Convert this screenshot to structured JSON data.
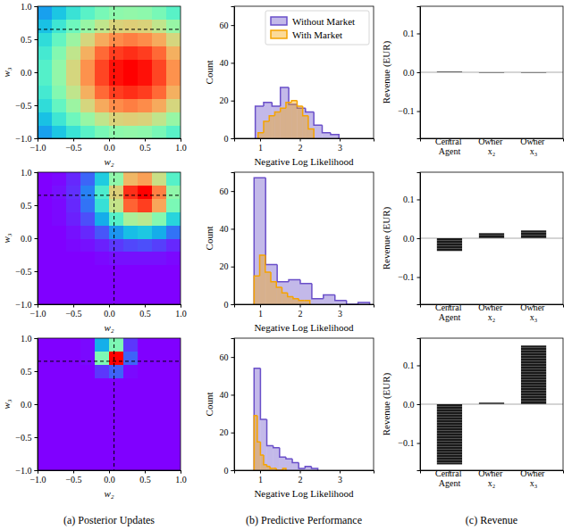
{
  "captions": [
    "(a) Posterior Updates",
    "(b) Predictive Performance",
    "(c) Revenue"
  ],
  "chart_data": [
    {
      "type": "heatmap",
      "x": [
        -0.9,
        -0.7,
        -0.5,
        -0.3,
        -0.1,
        0.1,
        0.3,
        0.5,
        0.7,
        0.9
      ],
      "y": [
        -0.9,
        -0.7,
        -0.5,
        -0.3,
        -0.1,
        0.1,
        0.3,
        0.5,
        0.7,
        0.9
      ],
      "z": [
        [
          0.22,
          0.29,
          0.36,
          0.42,
          0.48,
          0.52,
          0.53,
          0.52,
          0.48,
          0.42
        ],
        [
          0.28,
          0.37,
          0.46,
          0.54,
          0.62,
          0.67,
          0.68,
          0.67,
          0.62,
          0.54
        ],
        [
          0.34,
          0.44,
          0.55,
          0.66,
          0.75,
          0.8,
          0.82,
          0.8,
          0.75,
          0.66
        ],
        [
          0.38,
          0.5,
          0.62,
          0.74,
          0.85,
          0.91,
          0.93,
          0.91,
          0.85,
          0.74
        ],
        [
          0.41,
          0.53,
          0.66,
          0.79,
          0.9,
          0.97,
          0.99,
          0.97,
          0.9,
          0.79
        ],
        [
          0.41,
          0.53,
          0.66,
          0.79,
          0.9,
          0.97,
          0.99,
          0.97,
          0.9,
          0.79
        ],
        [
          0.38,
          0.5,
          0.62,
          0.74,
          0.85,
          0.91,
          0.93,
          0.91,
          0.85,
          0.74
        ],
        [
          0.34,
          0.44,
          0.55,
          0.66,
          0.75,
          0.8,
          0.82,
          0.8,
          0.75,
          0.66
        ],
        [
          0.28,
          0.37,
          0.46,
          0.54,
          0.62,
          0.67,
          0.68,
          0.67,
          0.62,
          0.54
        ],
        [
          0.22,
          0.29,
          0.36,
          0.42,
          0.48,
          0.52,
          0.53,
          0.52,
          0.48,
          0.42
        ]
      ],
      "vline": 0.07,
      "hline": 0.65,
      "xlim": [
        -1,
        1
      ],
      "ylim": [
        -1,
        1
      ],
      "xticks": [
        {
          "value": -1,
          "label": "−1.0"
        },
        {
          "value": -0.5,
          "label": "−0.5"
        },
        {
          "value": 0,
          "label": "0.0"
        },
        {
          "value": 0.5,
          "label": "0.5"
        },
        {
          "value": 1,
          "label": "1.0"
        }
      ],
      "yticks": [
        {
          "value": -1,
          "label": "−1.0"
        },
        {
          "value": -0.5,
          "label": "−0.5"
        },
        {
          "value": 0,
          "label": "0.0"
        },
        {
          "value": 0.5,
          "label": "0.5"
        },
        {
          "value": 1,
          "label": "1.0"
        }
      ],
      "xlabel": "w₂",
      "ylabel": "w₃"
    },
    {
      "type": "histogram",
      "series": [
        {
          "name": "Without Market",
          "color": "#6a4fc9",
          "bins": [
            0.88,
            1.09,
            1.3,
            1.51,
            1.72,
            1.93,
            2.14,
            2.35,
            2.56,
            2.77,
            2.98
          ],
          "counts": [
            17,
            19,
            17,
            27,
            18,
            16,
            14,
            7,
            3,
            2
          ]
        },
        {
          "name": "With Market",
          "color": "#f5a300",
          "bins": [
            0.95,
            1.09,
            1.23,
            1.37,
            1.51,
            1.65,
            1.79,
            1.93,
            2.07,
            2.21,
            2.35
          ],
          "counts": [
            3,
            9,
            12,
            14,
            16,
            19,
            20,
            17,
            12,
            5
          ]
        }
      ],
      "xlim": [
        0.35,
        3.85
      ],
      "ylim": [
        0,
        70
      ],
      "xticks": [
        1,
        2,
        3
      ],
      "yticks": [
        0,
        20,
        40,
        60
      ],
      "xlabel": "Negative Log Likelihood",
      "ylabel": "Count",
      "legend": "upper right"
    },
    {
      "type": "bar",
      "categories": [
        "Central Agent",
        "Owner x₂",
        "Owner x₃"
      ],
      "values": [
        0.002,
        -0.001,
        -0.001
      ],
      "color": "#1a1a1a",
      "ylim": [
        -0.17,
        0.17
      ],
      "yticks": [
        {
          "value": -0.1,
          "label": "−0.1"
        },
        {
          "value": 0,
          "label": "0.0"
        },
        {
          "value": 0.1,
          "label": "0.1"
        }
      ],
      "ylabel": "Revenue (EUR)"
    },
    {
      "type": "heatmap",
      "x": [
        -0.9,
        -0.7,
        -0.5,
        -0.3,
        -0.1,
        0.1,
        0.3,
        0.5,
        0.7,
        0.9
      ],
      "y": [
        -0.9,
        -0.7,
        -0.5,
        -0.3,
        -0.1,
        0.1,
        0.3,
        0.5,
        0.7,
        0.9
      ],
      "z": [
        [
          0,
          0,
          0,
          0,
          0,
          0,
          0,
          0,
          0,
          0
        ],
        [
          0,
          0,
          0,
          0,
          0,
          0,
          0,
          0,
          0,
          0
        ],
        [
          0,
          0,
          0,
          0,
          0,
          0,
          0,
          0,
          0,
          0
        ],
        [
          0,
          0,
          0,
          0,
          0.01,
          0.02,
          0.02,
          0.02,
          0.02,
          0.01
        ],
        [
          0,
          0,
          0.01,
          0.02,
          0.04,
          0.07,
          0.09,
          0.1,
          0.08,
          0.05
        ],
        [
          0,
          0,
          0.02,
          0.05,
          0.11,
          0.2,
          0.27,
          0.29,
          0.24,
          0.15
        ],
        [
          0,
          0.01,
          0.04,
          0.1,
          0.24,
          0.41,
          0.57,
          0.6,
          0.5,
          0.32
        ],
        [
          0,
          0.01,
          0.05,
          0.15,
          0.35,
          0.62,
          0.85,
          0.9,
          0.75,
          0.48
        ],
        [
          0,
          0.02,
          0.06,
          0.17,
          0.39,
          0.67,
          0.92,
          0.98,
          0.81,
          0.52
        ],
        [
          0,
          0.01,
          0.05,
          0.13,
          0.3,
          0.52,
          0.72,
          0.76,
          0.63,
          0.41
        ]
      ],
      "vline": 0.07,
      "hline": 0.65,
      "xlim": [
        -1,
        1
      ],
      "ylim": [
        -1,
        1
      ],
      "xticks": [
        {
          "value": -1,
          "label": "−1.0"
        },
        {
          "value": -0.5,
          "label": "−0.5"
        },
        {
          "value": 0,
          "label": "0.0"
        },
        {
          "value": 0.5,
          "label": "0.5"
        },
        {
          "value": 1,
          "label": "1.0"
        }
      ],
      "yticks": [
        {
          "value": -1,
          "label": "−1.0"
        },
        {
          "value": -0.5,
          "label": "−0.5"
        },
        {
          "value": 0,
          "label": "0.0"
        },
        {
          "value": 0.5,
          "label": "0.5"
        },
        {
          "value": 1,
          "label": "1.0"
        }
      ],
      "xlabel": "w₂",
      "ylabel": "w₃"
    },
    {
      "type": "histogram",
      "series": [
        {
          "color": "#6a4fc9",
          "bins": [
            0.85,
            1.14,
            1.43,
            1.72,
            2.01,
            2.3,
            2.59,
            2.88,
            3.17,
            3.46,
            3.75
          ],
          "counts": [
            67,
            21,
            12,
            13,
            11,
            3,
            5,
            2,
            0,
            1
          ]
        },
        {
          "color": "#f5a300",
          "bins": [
            0.85,
            0.99,
            1.13,
            1.27,
            1.41,
            1.55,
            1.69,
            1.83,
            1.97,
            2.11,
            2.25
          ],
          "counts": [
            15,
            26,
            17,
            12,
            9,
            6,
            4,
            3,
            2,
            2
          ]
        }
      ],
      "xlim": [
        0.35,
        3.85
      ],
      "ylim": [
        0,
        70
      ],
      "xticks": [
        1,
        2,
        3
      ],
      "yticks": [
        0,
        20,
        40,
        60
      ],
      "xlabel": "Negative Log Likelihood",
      "ylabel": "Count"
    },
    {
      "type": "bar",
      "categories": [
        "Central Agent",
        "Owner x₂",
        "Owner x₃"
      ],
      "values": [
        -0.033,
        0.013,
        0.02
      ],
      "color": "#1a1a1a",
      "ylim": [
        -0.17,
        0.17
      ],
      "yticks": [
        {
          "value": -0.1,
          "label": "−0.1"
        },
        {
          "value": 0,
          "label": "0.0"
        },
        {
          "value": 0.1,
          "label": "0.1"
        }
      ],
      "ylabel": "Revenue (EUR)"
    },
    {
      "type": "heatmap",
      "x": [
        -0.9,
        -0.7,
        -0.5,
        -0.3,
        -0.1,
        0.1,
        0.3,
        0.5,
        0.7,
        0.9
      ],
      "y": [
        -0.9,
        -0.7,
        -0.5,
        -0.3,
        -0.1,
        0.1,
        0.3,
        0.5,
        0.7,
        0.9
      ],
      "z": [
        [
          0,
          0,
          0,
          0,
          0,
          0,
          0,
          0,
          0,
          0
        ],
        [
          0,
          0,
          0,
          0,
          0,
          0,
          0,
          0,
          0,
          0
        ],
        [
          0,
          0,
          0,
          0,
          0,
          0,
          0,
          0,
          0,
          0
        ],
        [
          0,
          0,
          0,
          0,
          0,
          0,
          0,
          0,
          0,
          0
        ],
        [
          0,
          0,
          0,
          0,
          0,
          0,
          0,
          0,
          0,
          0
        ],
        [
          0,
          0,
          0,
          0,
          0,
          0,
          0,
          0,
          0,
          0
        ],
        [
          0,
          0,
          0,
          0,
          0,
          0,
          0,
          0,
          0,
          0
        ],
        [
          0,
          0,
          0,
          0,
          0.06,
          0.11,
          0.01,
          0,
          0,
          0
        ],
        [
          0,
          0,
          0,
          0.01,
          0.42,
          0.85,
          0.11,
          0,
          0,
          0
        ],
        [
          0,
          0,
          0,
          0.01,
          0.21,
          0.42,
          0.06,
          0,
          0,
          0
        ]
      ],
      "vline": 0.07,
      "hline": 0.65,
      "xlim": [
        -1,
        1
      ],
      "ylim": [
        -1,
        1
      ],
      "xticks": [
        {
          "value": -1,
          "label": "−1.0"
        },
        {
          "value": -0.5,
          "label": "−0.5"
        },
        {
          "value": 0,
          "label": "0.0"
        },
        {
          "value": 0.5,
          "label": "0.5"
        },
        {
          "value": 1,
          "label": "1.0"
        }
      ],
      "yticks": [
        {
          "value": -1,
          "label": "−1.0"
        },
        {
          "value": -0.5,
          "label": "−0.5"
        },
        {
          "value": 0,
          "label": "0.0"
        },
        {
          "value": 0.5,
          "label": "0.5"
        },
        {
          "value": 1,
          "label": "1.0"
        }
      ],
      "xlabel": "w₂",
      "ylabel": "w₃"
    },
    {
      "type": "histogram",
      "series": [
        {
          "color": "#6a4fc9",
          "bins": [
            0.85,
            1.01,
            1.17,
            1.33,
            1.49,
            1.65,
            1.81,
            1.97,
            2.13,
            2.29,
            2.45
          ],
          "counts": [
            54,
            27,
            13,
            12,
            7,
            6,
            4,
            1,
            2,
            1
          ]
        },
        {
          "color": "#f5a300",
          "bins": [
            0.85,
            0.93,
            1.01,
            1.09,
            1.17,
            1.25,
            1.33,
            1.41,
            1.49,
            1.57,
            1.65
          ],
          "counts": [
            29,
            15,
            8,
            3,
            2,
            1,
            1,
            0,
            0,
            1
          ]
        }
      ],
      "xlim": [
        0.35,
        3.85
      ],
      "ylim": [
        0,
        70
      ],
      "xticks": [
        1,
        2,
        3
      ],
      "yticks": [
        0,
        20,
        40,
        60
      ],
      "xlabel": "Negative Log Likelihood",
      "ylabel": "Count"
    },
    {
      "type": "bar",
      "categories": [
        "Central Agent",
        "Owner x₂",
        "Owner x₃"
      ],
      "values": [
        -0.155,
        0.004,
        0.151
      ],
      "color": "#1a1a1a",
      "ylim": [
        -0.17,
        0.17
      ],
      "yticks": [
        {
          "value": -0.1,
          "label": "−0.1"
        },
        {
          "value": 0,
          "label": "0.0"
        },
        {
          "value": 0.1,
          "label": "0.1"
        }
      ],
      "ylabel": "Revenue (EUR)"
    }
  ]
}
